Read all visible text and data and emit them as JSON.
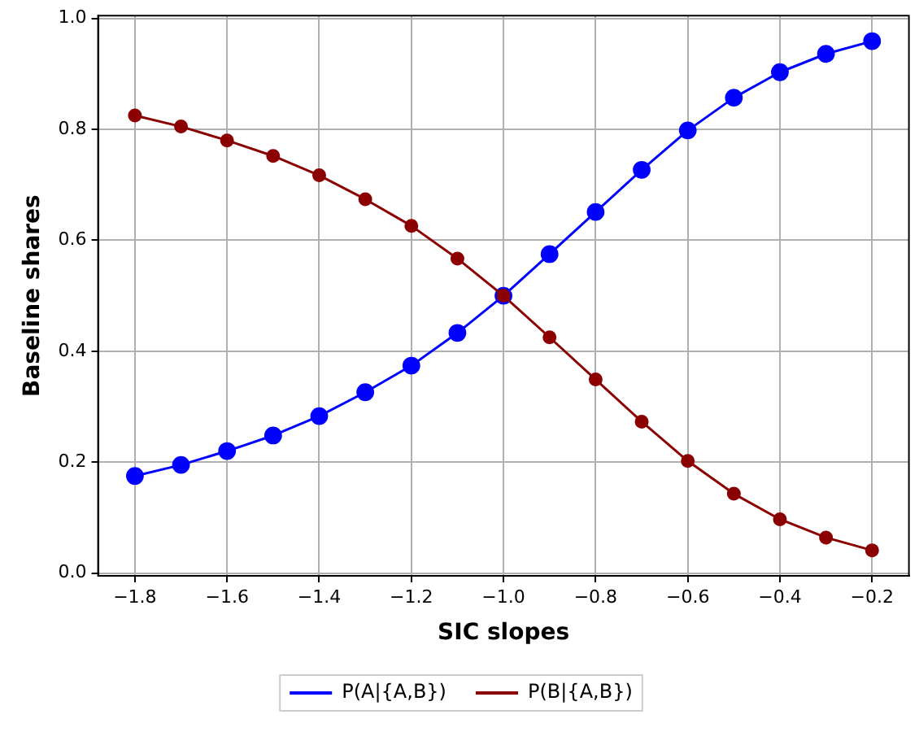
{
  "chart_data": {
    "type": "line",
    "xlabel": "SIC slopes",
    "ylabel": "Baseline shares",
    "x": [
      -1.8,
      -1.7,
      -1.6,
      -1.5,
      -1.4,
      -1.3,
      -1.2,
      -1.1,
      -1.0,
      -0.9,
      -0.8,
      -0.7,
      -0.6,
      -0.5,
      -0.4,
      -0.3,
      -0.2
    ],
    "series": [
      {
        "name": "P(A|{A,B})",
        "color": "#0000ff",
        "values": [
          0.175,
          0.195,
          0.22,
          0.248,
          0.283,
          0.326,
          0.374,
          0.433,
          0.5,
          0.575,
          0.651,
          0.727,
          0.798,
          0.857,
          0.903,
          0.936,
          0.959
        ]
      },
      {
        "name": "P(B|{A,B})",
        "color": "#8b0000",
        "values": [
          0.825,
          0.805,
          0.78,
          0.752,
          0.717,
          0.674,
          0.626,
          0.567,
          0.5,
          0.425,
          0.349,
          0.273,
          0.202,
          0.143,
          0.097,
          0.064,
          0.041
        ]
      }
    ],
    "xlim": [
      -1.88,
      -0.12
    ],
    "xticks": [
      -1.8,
      -1.6,
      -1.4,
      -1.2,
      {
        "value": -1,
        "label": "−1.0"
      },
      -0.8,
      -0.6,
      -0.4,
      -0.2
    ],
    "ylim": [
      -0.005,
      1.005
    ],
    "yticks": [
      {
        "value": 0,
        "label": "0.0"
      },
      0.2,
      0.4,
      0.6,
      0.8,
      {
        "value": 1,
        "label": "1.0"
      }
    ],
    "grid": true,
    "legend": "bottom",
    "marker": "circle",
    "line_style": "solid"
  }
}
